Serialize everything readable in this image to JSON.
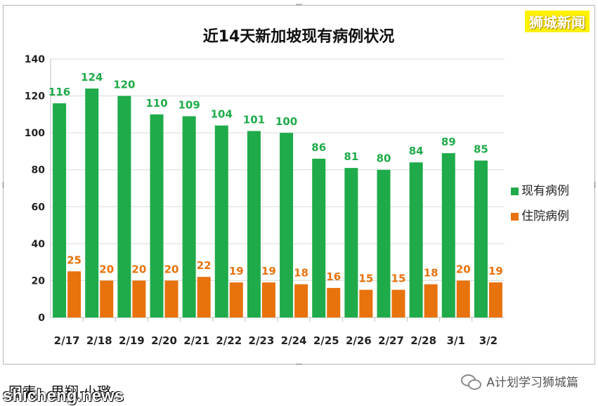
{
  "watermark": "狮城新闻",
  "caption": "图表：思翔·小璐",
  "site": "shicheng.news",
  "account": "A计划学习狮城篇",
  "chart_data": {
    "type": "bar",
    "title": "近14天新加坡现有病例状况",
    "categories": [
      "2/17",
      "2/18",
      "2/19",
      "2/20",
      "2/21",
      "2/22",
      "2/23",
      "2/24",
      "2/25",
      "2/26",
      "2/27",
      "2/28",
      "3/1",
      "3/2"
    ],
    "series": [
      {
        "name": "现有病例",
        "color": "#1fab4a",
        "values": [
          116,
          124,
          120,
          110,
          109,
          104,
          101,
          100,
          86,
          81,
          80,
          84,
          89,
          85
        ]
      },
      {
        "name": "住院病例",
        "color": "#e8720c",
        "values": [
          25,
          20,
          20,
          20,
          22,
          19,
          19,
          18,
          16,
          15,
          15,
          18,
          20,
          19
        ]
      }
    ],
    "ylim": [
      0,
      140
    ],
    "yticks": [
      0,
      20,
      40,
      60,
      80,
      100,
      120,
      140
    ],
    "grid": true,
    "legend": "right"
  }
}
